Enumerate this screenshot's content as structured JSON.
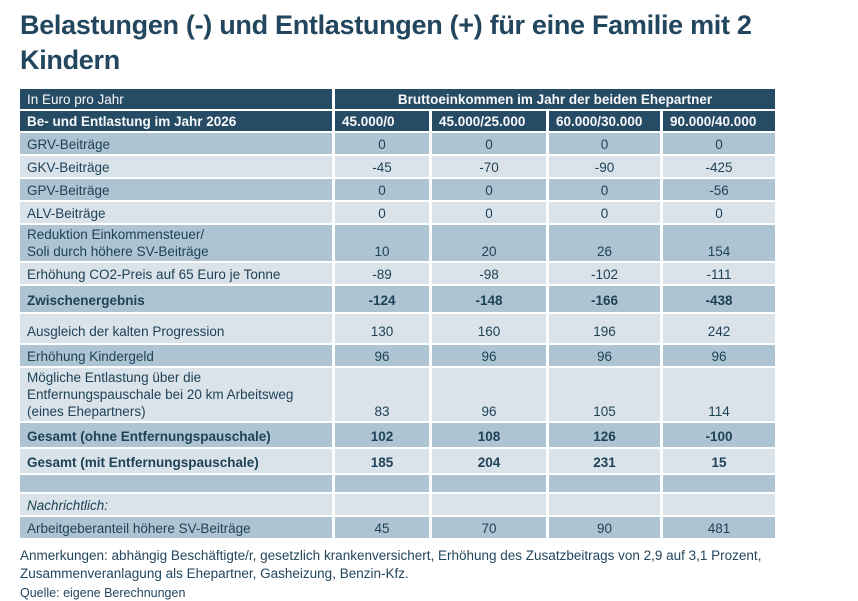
{
  "chart_data": {
    "type": "table",
    "title": "Belastungen (-) und Entlastungen (+) für eine Familie mit 2 Kindern",
    "unit_label": "In Euro pro Jahr",
    "column_group_header": "Bruttoeinkommen im Jahr der beiden Ehepartner",
    "row_header": "Be- und Entlastung im Jahr 2026",
    "columns": [
      "45.000/0",
      "45.000/25.000",
      "60.000/30.000",
      "90.000/40.000"
    ],
    "rows": [
      {
        "label": "GRV-Beiträge",
        "values": [
          0,
          0,
          0,
          0
        ],
        "shade": "dark"
      },
      {
        "label": "GKV-Beiträge",
        "values": [
          -45,
          -70,
          -90,
          -425
        ],
        "shade": "light"
      },
      {
        "label": "GPV-Beiträge",
        "values": [
          0,
          0,
          0,
          -56
        ],
        "shade": "dark"
      },
      {
        "label": "ALV-Beiträge",
        "values": [
          0,
          0,
          0,
          0
        ],
        "shade": "light"
      },
      {
        "label": "Reduktion Einkommensteuer/\nSoli durch höhere SV-Beiträge",
        "values": [
          10,
          20,
          26,
          154
        ],
        "shade": "dark"
      },
      {
        "label": "Erhöhung CO2-Preis auf 65 Euro je Tonne",
        "values": [
          -89,
          -98,
          -102,
          -111
        ],
        "shade": "light"
      },
      {
        "label": "Zwischenergebnis",
        "values": [
          -124,
          -148,
          -166,
          -438
        ],
        "shade": "dark",
        "bold": true,
        "size": "tall"
      },
      {
        "label": "Ausgleich der kalten Progression",
        "values": [
          130,
          160,
          196,
          242
        ],
        "shade": "light",
        "size": "padtop"
      },
      {
        "label": "Erhöhung Kindergeld",
        "values": [
          96,
          96,
          96,
          96
        ],
        "shade": "dark"
      },
      {
        "label": "Mögliche Entlastung über die\nEntfernungspauschale bei 20 km Arbeitsweg\n(eines Ehepartners)",
        "values": [
          83,
          96,
          105,
          114
        ],
        "shade": "light"
      },
      {
        "label": "Gesamt (ohne Entfernungspauschale)",
        "values": [
          102,
          108,
          126,
          -100
        ],
        "shade": "dark",
        "bold": true,
        "size": "total"
      },
      {
        "label": "Gesamt (mit Entfernungspauschale)",
        "values": [
          185,
          204,
          231,
          15
        ],
        "shade": "light",
        "bold": true,
        "size": "total"
      },
      {
        "label": "",
        "values": [
          "",
          "",
          "",
          ""
        ],
        "shade": "dark",
        "size": "empty"
      },
      {
        "label": "Nachrichtlich:",
        "values": [
          "",
          "",
          "",
          ""
        ],
        "shade": "light",
        "italic": true
      },
      {
        "label": "Arbeitgeberanteil höhere SV-Beiträge",
        "values": [
          45,
          70,
          90,
          481
        ],
        "shade": "dark"
      }
    ]
  },
  "notes": "Anmerkungen: abhängig Beschäftigte/r, gesetzlich krankenversichert, Erhöhung des Zusatzbeitrags von 2,9 auf 3,1 Prozent, Zusammenveranlagung als Ehepartner, Gasheizung, Benzin-Kfz.",
  "source": "Quelle: eigene Berechnungen",
  "colors": {
    "header_navy": "#264b64",
    "row_dark": "#afc4d3",
    "row_light": "#dae2ea",
    "text_navy": "#1e4257",
    "title_navy": "#23465f"
  }
}
